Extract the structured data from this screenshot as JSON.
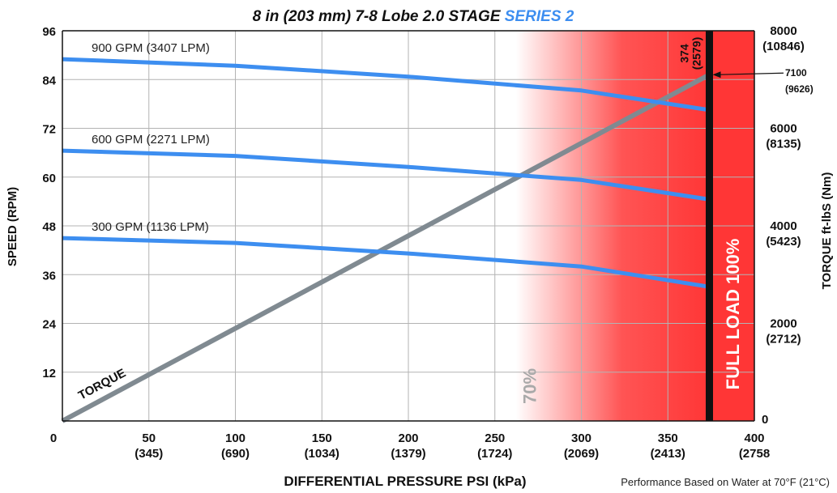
{
  "chart_data": {
    "type": "line",
    "title_main": "8 in (203 mm) 7-8 Lobe 2.0 STAGE",
    "title_series": "SERIES 2",
    "xlabel": "DIFFERENTIAL PRESSURE  PSI (kPa)",
    "ylabel_left": "SPEED (RPM)",
    "ylabel_right": "TORQUE  ft-lbS (Nm)",
    "footnote": "Performance Based on Water at 70°F (21°C)",
    "xlim": [
      0,
      400
    ],
    "ylim": [
      0,
      96
    ],
    "y2lim": [
      0,
      8000
    ],
    "x_ticks": [
      {
        "value": 0,
        "label": "0",
        "sub": ""
      },
      {
        "value": 50,
        "label": "50",
        "sub": "(345)"
      },
      {
        "value": 100,
        "label": "100",
        "sub": "(690)"
      },
      {
        "value": 150,
        "label": "150",
        "sub": "(1034)"
      },
      {
        "value": 200,
        "label": "200",
        "sub": "(1379)"
      },
      {
        "value": 250,
        "label": "250",
        "sub": "(1724)"
      },
      {
        "value": 300,
        "label": "300",
        "sub": "(2069)"
      },
      {
        "value": 350,
        "label": "350",
        "sub": "(2413)"
      },
      {
        "value": 400,
        "label": "400",
        "sub": "(2758"
      }
    ],
    "y_ticks": [
      "12",
      "24",
      "36",
      "48",
      "60",
      "72",
      "84",
      "96"
    ],
    "y2_ticks": [
      {
        "value": 0,
        "label": "0",
        "sub": ""
      },
      {
        "value": 2000,
        "label": "2000",
        "sub": "(2712)"
      },
      {
        "value": 4000,
        "label": "4000",
        "sub": "(5423)"
      },
      {
        "value": 6000,
        "label": "6000",
        "sub": "(8135)"
      },
      {
        "value": 8000,
        "label": "8000",
        "sub": "(10846)"
      }
    ],
    "series": [
      {
        "name": "900 GPM (3407 LPM)",
        "color": "#3d8ef0",
        "x": [
          0,
          100,
          200,
          300,
          374
        ],
        "y": [
          89,
          87.4,
          84.7,
          81.3,
          76.5
        ]
      },
      {
        "name": "600 GPM (2271 LPM)",
        "color": "#3d8ef0",
        "x": [
          0,
          100,
          200,
          300,
          374
        ],
        "y": [
          66.5,
          65.2,
          62.5,
          59.3,
          54.5
        ]
      },
      {
        "name": "300 GPM (1136 LPM)",
        "color": "#3d8ef0",
        "x": [
          0,
          100,
          200,
          300,
          374
        ],
        "y": [
          45,
          43.8,
          41.2,
          38,
          33
        ]
      }
    ],
    "torque": {
      "name": "TORQUE",
      "color": "#808a91",
      "x": [
        0,
        374
      ],
      "y2": [
        0,
        7100
      ]
    },
    "zones": [
      {
        "label": "70%",
        "from": 262,
        "to": 374,
        "color": "#ff3636"
      },
      {
        "label": "FULL LOAD 100%",
        "from": 374,
        "to": 400,
        "color": "#ff3636"
      }
    ],
    "full_load_line": {
      "x": 374,
      "label_top": "374",
      "label_bottom": "(2579)"
    },
    "annotation": {
      "x": 374,
      "y2": 7100,
      "label_top": "7100",
      "label_bottom": "(9626)"
    }
  }
}
